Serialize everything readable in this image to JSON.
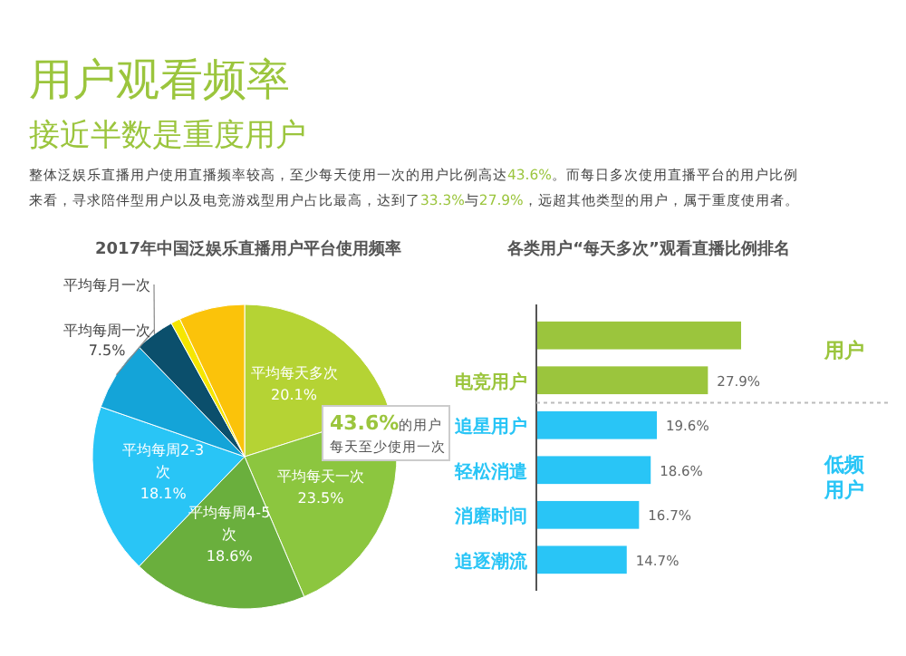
{
  "chart_data": [
    {
      "type": "other",
      "title": "用户观看频率",
      "subtitle": "接近半数是重度用户",
      "annotations": [
        "整体泛娱乐直播用户使用直播频率较高，至少每天使用一次的用户比例高达43.6%。而每日多次使用直播平台的用户比例",
        "来看，寻求陪伴型用户以及电竞游戏型用户占比最高，达到了33.3%与27.9%，远超其他类型的用户，属于重度使用者。"
      ]
    },
    {
      "type": "pie",
      "title": "2017年中国泛娱乐直播用户平台使用频率",
      "categories": [
        "平均每天多次",
        "平均每天一次",
        "平均每周4-5次",
        "平均每周2-3次",
        "平均每周一次",
        "平均每月一次",
        null,
        null
      ],
      "values": [
        20.1,
        23.5,
        18.6,
        18.1,
        7.5,
        4.2,
        1.0,
        7.0
      ],
      "value_labels": [
        "20.1%",
        "23.5%",
        "18.6%",
        "18.1%",
        "7.5%",
        null,
        null,
        null
      ],
      "colors": [
        "#b5d334",
        "#8cc63f",
        "#6aaf3d",
        "#29c5f6",
        "#14a4d8",
        "#0b4f6c",
        "#f6e600",
        "#fbc30a"
      ],
      "annotations": [
        "43.6%的用户",
        "每天至少使用一次"
      ]
    },
    {
      "type": "bar",
      "orientation": "horizontal",
      "title": "各类用户“每天多次”观看直播比例排名",
      "categories": [
        null,
        "电竞用户",
        "追星用户",
        "轻松消遣",
        "消磨时间",
        "追逐潮流"
      ],
      "values": [
        33.3,
        27.9,
        19.6,
        18.6,
        16.7,
        14.7
      ],
      "value_labels": [
        null,
        "27.9%",
        "19.6%",
        "18.6%",
        "16.7%",
        "14.7%"
      ],
      "colors": [
        "#9bc53d",
        "#9bc53d",
        "#29c5f6",
        "#29c5f6",
        "#29c5f6",
        "#29c5f6"
      ],
      "tick_labels": "y",
      "annotations": [
        "用户",
        "低频用户"
      ]
    }
  ]
}
